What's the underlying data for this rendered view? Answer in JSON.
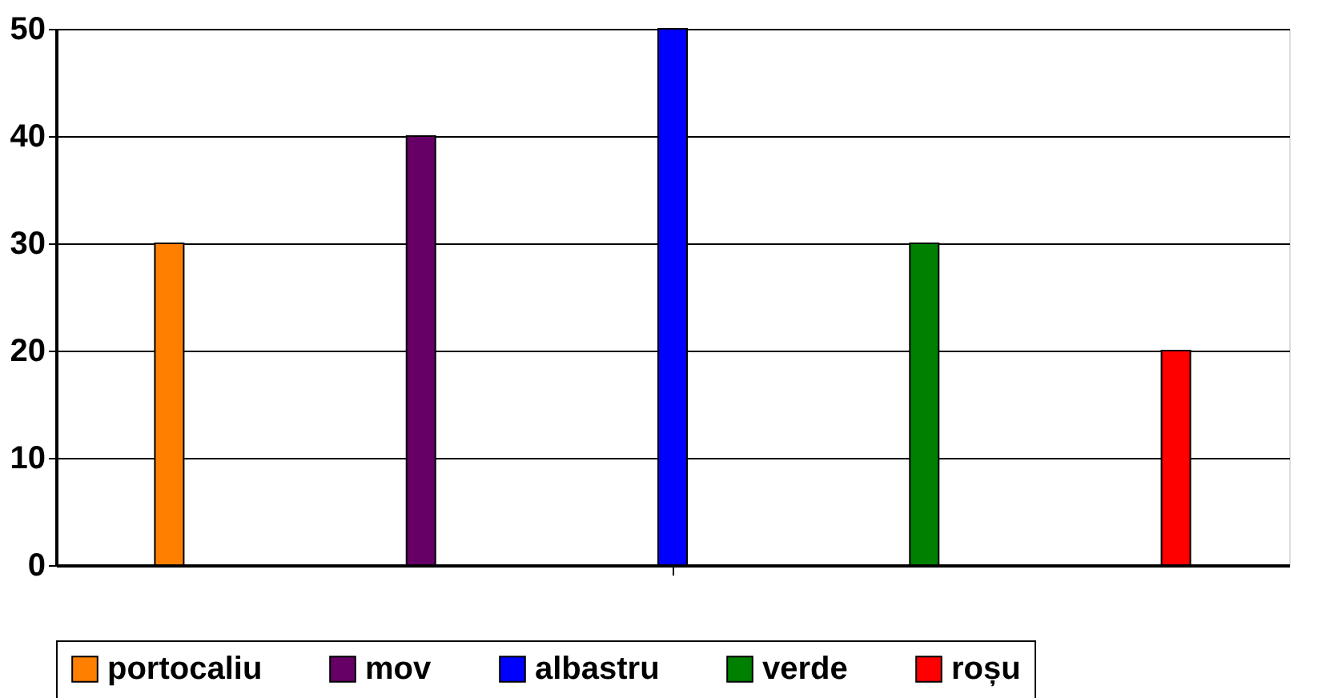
{
  "chart_data": {
    "type": "bar",
    "categories": [
      null
    ],
    "series": [
      {
        "name": "portocaliu",
        "color": "#ff8000",
        "values": [
          30
        ]
      },
      {
        "name": "mov",
        "color": "#660066",
        "values": [
          40
        ]
      },
      {
        "name": "albastru",
        "color": "#0000ff",
        "values": [
          50
        ]
      },
      {
        "name": "verde",
        "color": "#008000",
        "values": [
          30
        ]
      },
      {
        "name": "roșu",
        "color": "#ff0000",
        "values": [
          20
        ]
      }
    ],
    "ylim": [
      0,
      50
    ],
    "yticks": [
      0,
      10,
      20,
      30,
      40,
      50
    ],
    "grid": "y",
    "legend": "bottom",
    "tick_labels": "y"
  }
}
